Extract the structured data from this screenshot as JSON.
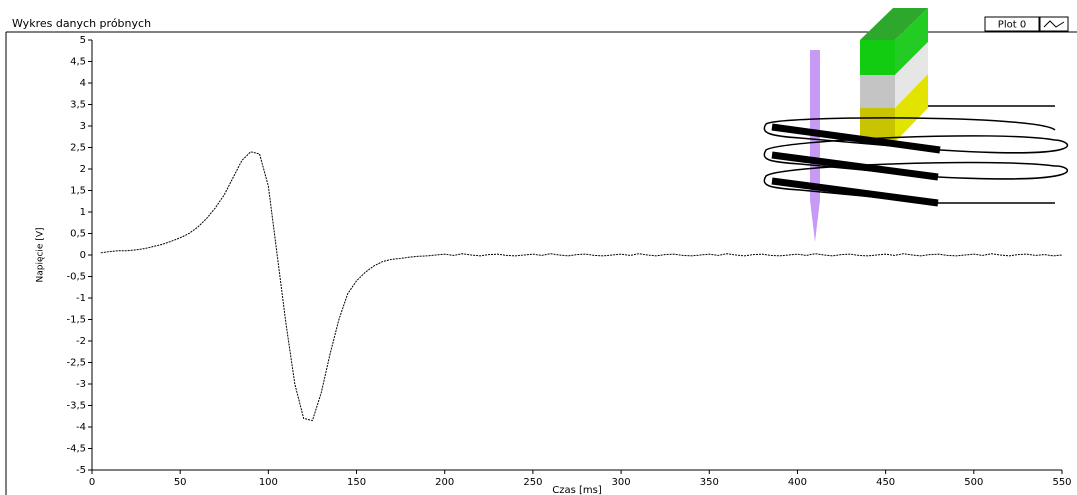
{
  "chart_data": {
    "type": "line",
    "title": "Wykres danych próbnych",
    "x_label": "Czas [ms]",
    "y_label": "Napięcie [V]",
    "x": [
      5,
      10,
      15,
      20,
      25,
      30,
      35,
      40,
      45,
      50,
      55,
      60,
      65,
      70,
      75,
      80,
      85,
      90,
      95,
      100,
      105,
      110,
      115,
      120,
      125,
      130,
      135,
      140,
      145,
      150,
      155,
      160,
      165,
      170,
      175,
      180,
      185,
      190,
      195,
      200,
      205,
      210,
      215,
      220,
      225,
      230,
      235,
      240,
      245,
      250,
      255,
      260,
      265,
      270,
      275,
      280,
      285,
      290,
      295,
      300,
      305,
      310,
      315,
      320,
      325,
      330,
      335,
      340,
      345,
      350,
      355,
      360,
      365,
      370,
      375,
      380,
      385,
      390,
      395,
      400,
      405,
      410,
      415,
      420,
      425,
      430,
      435,
      440,
      445,
      450,
      455,
      460,
      465,
      470,
      475,
      480,
      485,
      490,
      495,
      500,
      505,
      510,
      515,
      520,
      525,
      530,
      535,
      540,
      545,
      550
    ],
    "series": [
      {
        "name": "Plot 0",
        "color": "#000000",
        "values": [
          0.05,
          0.08,
          0.1,
          0.1,
          0.12,
          0.15,
          0.2,
          0.25,
          0.32,
          0.4,
          0.5,
          0.65,
          0.85,
          1.1,
          1.4,
          1.8,
          2.2,
          2.4,
          2.35,
          1.6,
          0,
          -1.6,
          -3,
          -3.8,
          -3.85,
          -3.2,
          -2.3,
          -1.5,
          -0.9,
          -0.6,
          -0.4,
          -0.25,
          -0.15,
          -0.1,
          -0.08,
          -0.05,
          -0.03,
          -0.02,
          0,
          0.02,
          -0.01,
          0.03,
          0,
          -0.02,
          0.01,
          0.02,
          -0.01,
          -0.02,
          0,
          0.02,
          -0.01,
          0.03,
          0,
          -0.02,
          0.01,
          0.02,
          -0.01,
          -0.02,
          0,
          0.02,
          -0.01,
          0.03,
          0,
          -0.02,
          0.01,
          0.02,
          -0.01,
          -0.02,
          0,
          0.02,
          -0.01,
          0.03,
          0,
          -0.02,
          0.01,
          0.02,
          -0.01,
          -0.02,
          0,
          0.02,
          -0.01,
          0.03,
          0,
          -0.02,
          0.01,
          0.02,
          -0.01,
          -0.02,
          0,
          0.02,
          -0.01,
          0.03,
          0,
          -0.02,
          0.01,
          0.02,
          -0.01,
          -0.02,
          0,
          0.02,
          -0.01,
          0.03,
          0,
          -0.02,
          0.01,
          0.02,
          -0.01,
          0.01,
          -0.02,
          0
        ]
      }
    ],
    "xlim": [
      0,
      550
    ],
    "xticks": [
      0,
      50,
      100,
      150,
      200,
      250,
      300,
      350,
      400,
      450,
      500,
      550
    ],
    "ylim": [
      -5,
      5
    ],
    "yticks": [
      5,
      {
        "value": 4.5,
        "label": "4,5"
      },
      4,
      {
        "value": 3.5,
        "label": "3,5"
      },
      3,
      {
        "value": 2.5,
        "label": "2,5"
      },
      2,
      {
        "value": 1.5,
        "label": "1,5"
      },
      1,
      {
        "value": 0.5,
        "label": "0,5"
      },
      0,
      {
        "value": -0.5,
        "label": "-0,5"
      },
      -1,
      {
        "value": -1.5,
        "label": "-1,5"
      },
      -2,
      {
        "value": -2.5,
        "label": "-2,5"
      },
      -3,
      {
        "value": -3.5,
        "label": "-3,5"
      },
      -4,
      {
        "value": -4.5,
        "label": "-4,5"
      },
      -5
    ],
    "grid": false
  }
}
